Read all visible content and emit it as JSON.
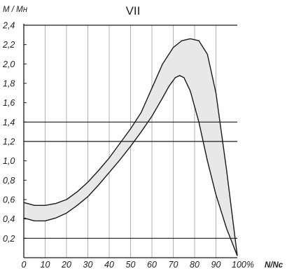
{
  "chart_data": {
    "type": "area",
    "title": "VII",
    "ylabel": "M / Mн",
    "xlabel": "N/Nc",
    "x_ticks": [
      "0",
      "10",
      "20",
      "30",
      "40",
      "50",
      "60",
      "70",
      "80",
      "90",
      "100%"
    ],
    "y_ticks": [
      "0,2",
      "0,4",
      "0,6",
      "0,8",
      "1,0",
      "1,2",
      "1,4",
      "1,6",
      "1,8",
      "2,0",
      "2,2",
      "2,4"
    ],
    "xlim": [
      0,
      100
    ],
    "ylim": [
      0,
      2.4
    ],
    "grid": "vertical every 10",
    "reference_lines": [
      0.2,
      1.2,
      1.4,
      2.4
    ],
    "colors": {
      "band_fill": "#e8e8e8",
      "line": "#1a1a1a",
      "grid": "#b0b0b0"
    },
    "series": [
      {
        "x": [
          0,
          5,
          10,
          15,
          20,
          25,
          30,
          35,
          40,
          45,
          50,
          55,
          60,
          65,
          70,
          74,
          78,
          82,
          86,
          90,
          95,
          100
        ],
        "values": [
          0.57,
          0.54,
          0.54,
          0.56,
          0.6,
          0.68,
          0.78,
          0.9,
          1.03,
          1.18,
          1.33,
          1.5,
          1.75,
          2.0,
          2.17,
          2.24,
          2.26,
          2.24,
          2.1,
          1.7,
          0.9,
          0.02
        ]
      },
      {
        "x": [
          0,
          5,
          10,
          15,
          20,
          25,
          30,
          35,
          40,
          45,
          50,
          55,
          60,
          65,
          68,
          71,
          73,
          75,
          78,
          82,
          86,
          90,
          95,
          100
        ],
        "values": [
          0.41,
          0.38,
          0.38,
          0.41,
          0.46,
          0.54,
          0.63,
          0.75,
          0.88,
          1.01,
          1.15,
          1.3,
          1.46,
          1.65,
          1.77,
          1.86,
          1.88,
          1.86,
          1.72,
          1.4,
          1.0,
          0.65,
          0.3,
          0.02
        ]
      }
    ]
  }
}
